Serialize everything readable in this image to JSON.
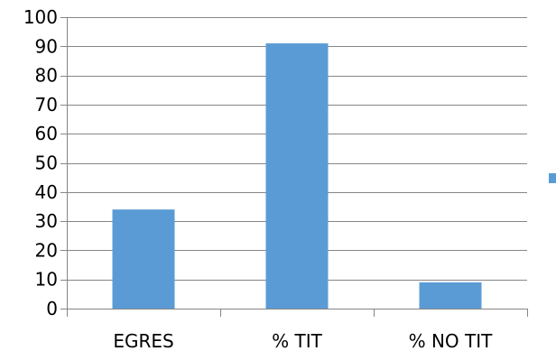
{
  "chart_data": {
    "type": "bar",
    "categories": [
      "EGRES",
      "% TIT",
      "% NO TIT"
    ],
    "series": [
      {
        "values": [
          34,
          91,
          9
        ],
        "color": "#5B9BD5"
      }
    ],
    "ylim": [
      0,
      100
    ],
    "y_ticks": [
      0,
      10,
      20,
      30,
      40,
      50,
      60,
      70,
      80,
      90,
      100
    ],
    "y_tick_labels": [
      "0",
      "10",
      "20",
      "30",
      "40",
      "50",
      "60",
      "70",
      "80",
      "90",
      "100"
    ],
    "grid": true,
    "gridline_color": "#868686",
    "legend_position": "right",
    "xlabel": "",
    "ylabel": ""
  }
}
